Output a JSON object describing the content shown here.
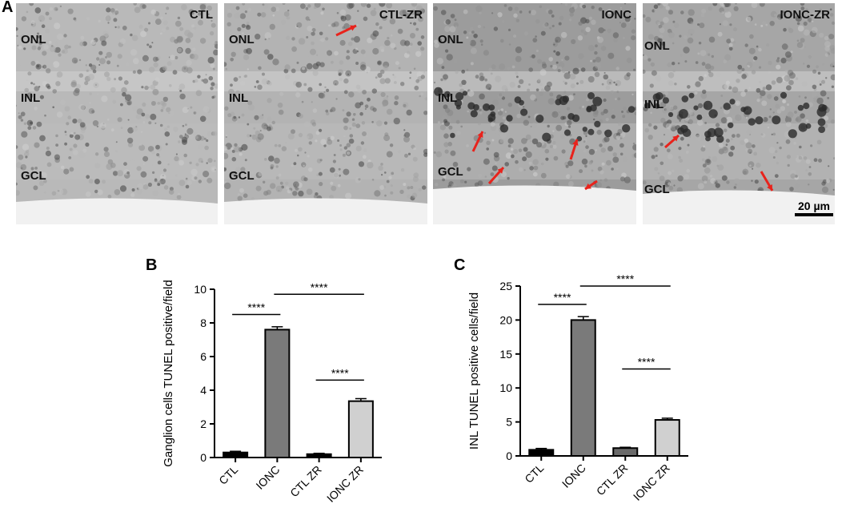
{
  "panel_labels": {
    "a": "A",
    "b": "B",
    "c": "C"
  },
  "micrographs": [
    {
      "title": "CTL",
      "layers": [
        "ONL",
        "INL",
        "GCL"
      ],
      "arrows": 0,
      "tone": "#b9b9b9"
    },
    {
      "title": "CTL-ZR",
      "layers": [
        "ONL",
        "INL",
        "GCL"
      ],
      "arrows": 1,
      "tone": "#b3b3b3"
    },
    {
      "title": "IONC",
      "layers": [
        "ONL",
        "INL",
        "GCL"
      ],
      "arrows": 4,
      "tone": "#9c9c9c"
    },
    {
      "title": "IONC-ZR",
      "layers": [
        "ONL",
        "INL",
        "GCL"
      ],
      "arrows": 2,
      "tone": "#a6a6a6"
    }
  ],
  "scale_bar": "20 µm",
  "arrow_color": "#e8231c",
  "chart_data": [
    {
      "type": "bar",
      "ylabel": "Ganglion cells TUNEL positive/field",
      "xlabel": "",
      "categories": [
        "CTL",
        "IONC",
        "CTL ZR",
        "IONC ZR"
      ],
      "values": [
        0.3,
        7.6,
        0.2,
        3.35
      ],
      "errors": [
        0.07,
        0.17,
        0.05,
        0.15
      ],
      "colors": [
        "#000000",
        "#7a7a7a",
        "#000000",
        "#d0d0d0"
      ],
      "ylim": [
        0,
        10
      ],
      "yticks": [
        "0",
        "2",
        "4",
        "6",
        "8",
        "10"
      ],
      "significance": [
        {
          "from": 0,
          "to": 1,
          "level": 8.5,
          "label": "****"
        },
        {
          "from": 1,
          "to": 3,
          "level": 9.7,
          "label": "****"
        },
        {
          "from": 2,
          "to": 3,
          "level": 4.6,
          "label": "****"
        }
      ]
    },
    {
      "type": "bar",
      "ylabel": "INL TUNEL positive cells/field",
      "xlabel": "",
      "categories": [
        "CTL",
        "IONC",
        "CTL ZR",
        "IONC ZR"
      ],
      "values": [
        0.9,
        20.0,
        1.15,
        5.3
      ],
      "errors": [
        0.2,
        0.5,
        0.12,
        0.25
      ],
      "colors": [
        "#000000",
        "#7a7a7a",
        "#6a6a6a",
        "#d0d0d0"
      ],
      "ylim": [
        0,
        25
      ],
      "yticks": [
        "0",
        "5",
        "10",
        "15",
        "20",
        "25"
      ],
      "significance": [
        {
          "from": 0,
          "to": 1,
          "level": 22.3,
          "label": "****"
        },
        {
          "from": 1,
          "to": 3,
          "level": 25.0,
          "label": "****"
        },
        {
          "from": 2,
          "to": 3,
          "level": 12.8,
          "label": "****"
        }
      ]
    }
  ]
}
